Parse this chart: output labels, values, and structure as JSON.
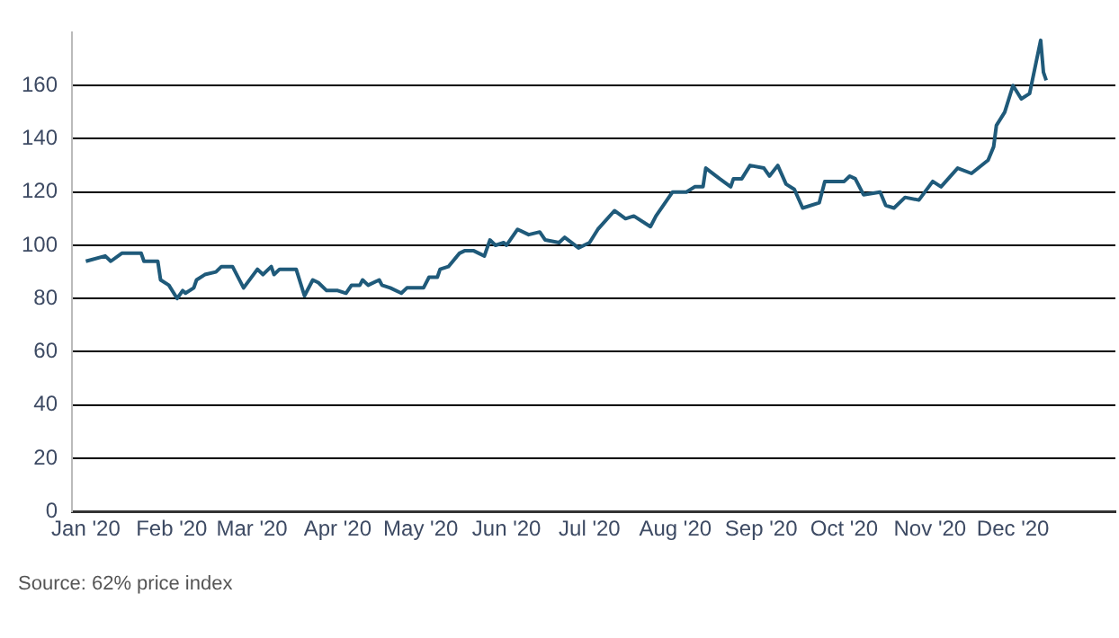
{
  "chart_data": {
    "type": "line",
    "x": [
      "2020-01-01",
      "2020-01-08",
      "2020-01-10",
      "2020-01-14",
      "2020-01-17",
      "2020-01-21",
      "2020-01-22",
      "2020-01-27",
      "2020-01-28",
      "2020-01-31",
      "2020-02-03",
      "2020-02-05",
      "2020-02-06",
      "2020-02-09",
      "2020-02-10",
      "2020-02-13",
      "2020-02-17",
      "2020-02-19",
      "2020-02-23",
      "2020-02-27",
      "2020-03-03",
      "2020-03-05",
      "2020-03-08",
      "2020-03-09",
      "2020-03-11",
      "2020-03-16",
      "2020-03-17",
      "2020-03-20",
      "2020-03-23",
      "2020-03-25",
      "2020-03-28",
      "2020-04-01",
      "2020-04-04",
      "2020-04-06",
      "2020-04-09",
      "2020-04-10",
      "2020-04-12",
      "2020-04-16",
      "2020-04-17",
      "2020-04-20",
      "2020-04-24",
      "2020-04-26",
      "2020-05-02",
      "2020-05-04",
      "2020-05-07",
      "2020-05-08",
      "2020-05-11",
      "2020-05-15",
      "2020-05-17",
      "2020-05-20",
      "2020-05-24",
      "2020-05-26",
      "2020-05-28",
      "2020-05-31",
      "2020-06-01",
      "2020-06-05",
      "2020-06-09",
      "2020-06-13",
      "2020-06-15",
      "2020-06-20",
      "2020-06-22",
      "2020-06-27",
      "2020-07-01",
      "2020-07-04",
      "2020-07-10",
      "2020-07-14",
      "2020-07-17",
      "2020-07-23",
      "2020-07-25",
      "2020-07-31",
      "2020-08-05",
      "2020-08-08",
      "2020-08-11",
      "2020-08-12",
      "2020-08-17",
      "2020-08-21",
      "2020-08-22",
      "2020-08-25",
      "2020-08-28",
      "2020-09-02",
      "2020-09-04",
      "2020-09-07",
      "2020-09-10",
      "2020-09-13",
      "2020-09-16",
      "2020-09-22",
      "2020-09-24",
      "2020-10-01",
      "2020-10-03",
      "2020-10-05",
      "2020-10-08",
      "2020-10-14",
      "2020-10-16",
      "2020-10-19",
      "2020-10-23",
      "2020-10-28",
      "2020-11-02",
      "2020-11-05",
      "2020-11-11",
      "2020-11-16",
      "2020-11-22",
      "2020-11-24",
      "2020-11-25",
      "2020-11-28",
      "2020-12-01",
      "2020-12-04",
      "2020-12-07",
      "2020-12-11",
      "2020-12-12",
      "2020-12-13"
    ],
    "values": [
      94,
      96,
      94,
      97,
      97,
      97,
      94,
      94,
      87,
      85,
      80,
      83,
      82,
      84,
      87,
      89,
      90,
      92,
      92,
      84,
      91,
      89,
      92,
      89,
      91,
      91,
      91,
      81,
      87,
      86,
      83,
      83,
      82,
      85,
      85,
      87,
      85,
      87,
      85,
      84,
      82,
      84,
      84,
      88,
      88,
      91,
      92,
      97,
      98,
      98,
      96,
      102,
      100,
      101,
      100,
      106,
      104,
      105,
      102,
      101,
      103,
      99,
      101,
      106,
      113,
      110,
      111,
      107,
      111,
      120,
      120,
      122,
      122,
      129,
      125,
      122,
      125,
      125,
      130,
      129,
      126,
      130,
      123,
      121,
      114,
      116,
      124,
      124,
      126,
      125,
      119,
      120,
      115,
      114,
      118,
      117,
      124,
      122,
      129,
      127,
      132,
      137,
      145,
      150,
      160,
      155,
      157,
      177,
      165,
      162
    ],
    "color": "#1f5a7a",
    "xlim": [
      "2019-12-27",
      "2021-01-07"
    ],
    "xticks": [
      {
        "value": "2020-01-01",
        "label": "Jan '20"
      },
      {
        "value": "2020-02-01",
        "label": "Feb '20"
      },
      {
        "value": "2020-03-01",
        "label": "Mar '20"
      },
      {
        "value": "2020-04-01",
        "label": "Apr '20"
      },
      {
        "value": "2020-05-01",
        "label": "May '20"
      },
      {
        "value": "2020-06-01",
        "label": "Jun '20"
      },
      {
        "value": "2020-07-01",
        "label": "Jul '20"
      },
      {
        "value": "2020-08-01",
        "label": "Aug '20"
      },
      {
        "value": "2020-09-01",
        "label": "Sep '20"
      },
      {
        "value": "2020-10-01",
        "label": "Oct '20"
      },
      {
        "value": "2020-11-01",
        "label": "Nov '20"
      },
      {
        "value": "2020-12-01",
        "label": "Dec '20"
      }
    ],
    "ylim": [
      0,
      180
    ],
    "yticks": [
      0,
      20,
      40,
      60,
      80,
      100,
      120,
      140,
      160
    ],
    "grid": "y",
    "line_style": "solid",
    "marker": "none",
    "legend": false,
    "annotations": [
      "Source: 62% price index"
    ]
  }
}
